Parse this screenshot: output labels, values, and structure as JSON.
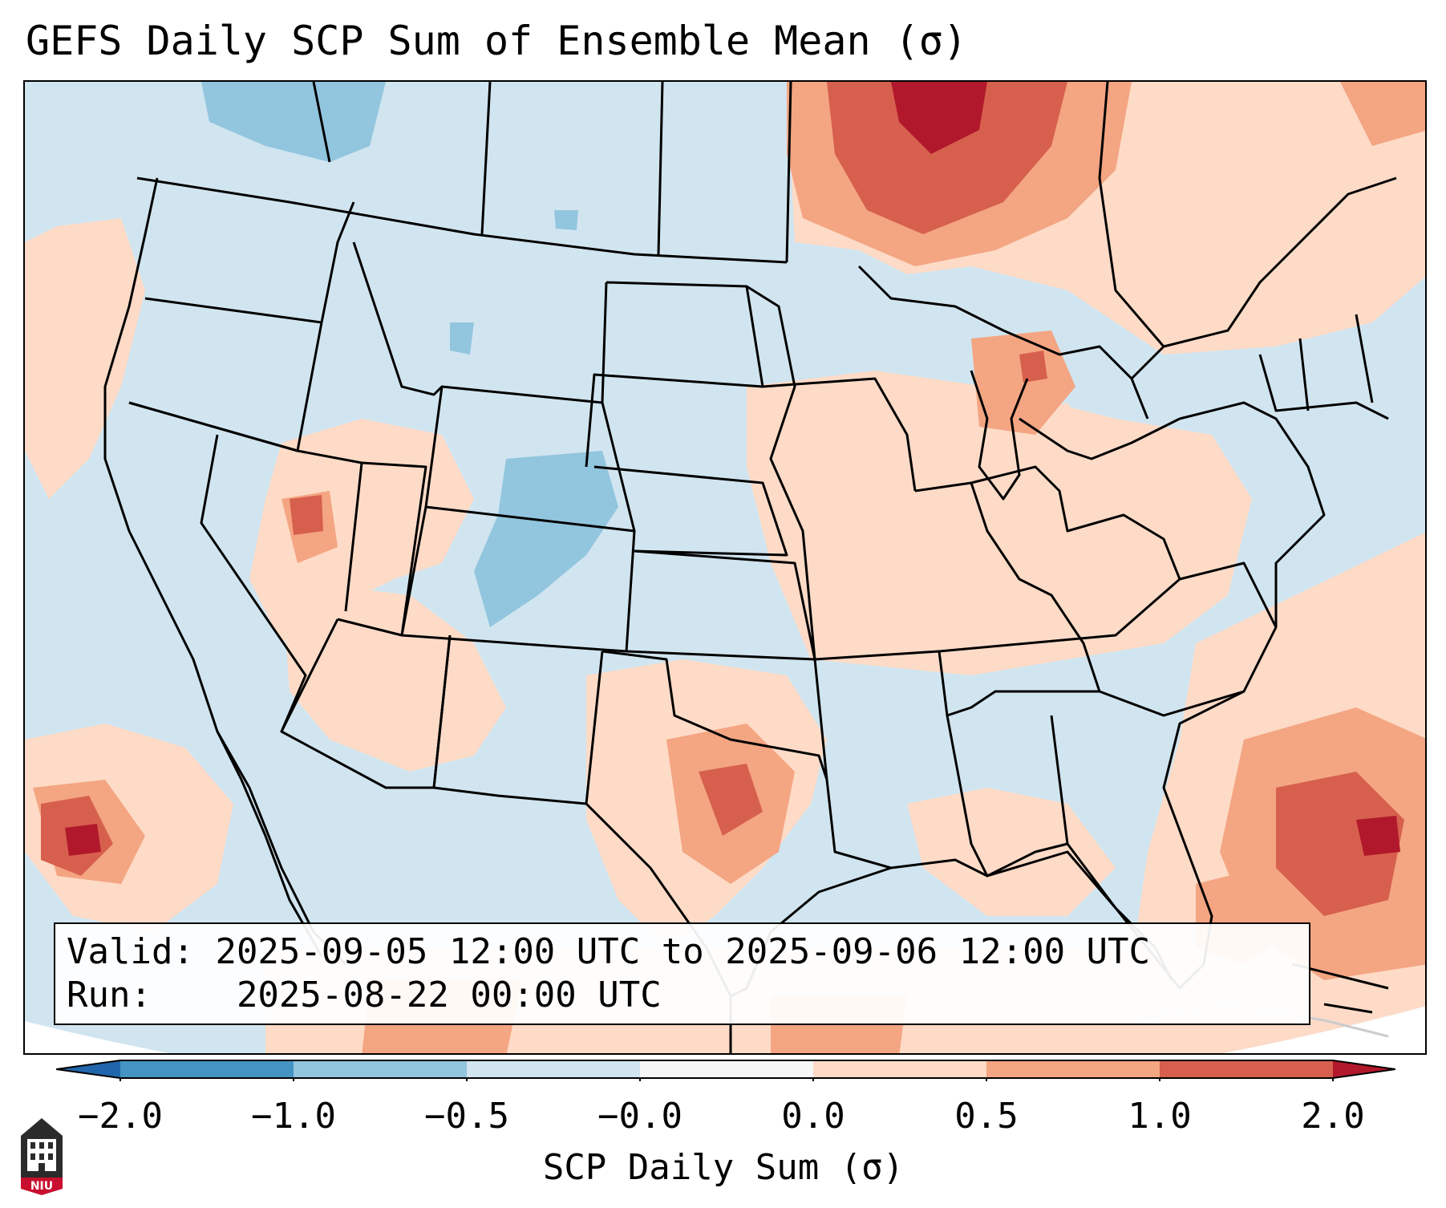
{
  "title": "GEFS Daily SCP Sum of Ensemble Mean (σ)",
  "info_box": {
    "valid_label": "Valid:",
    "valid_value": "2025-09-05 12:00 UTC to 2025-09-06 12:00 UTC",
    "run_label": "Run:",
    "run_value": "2025-08-22 00:00 UTC"
  },
  "colorbar": {
    "label": "SCP Daily Sum (σ)",
    "ticks": [
      "−2.0",
      "−1.0",
      "−0.5",
      "−0.0",
      "0.0",
      "0.5",
      "1.0",
      "2.0"
    ],
    "bins": [
      {
        "from": "-2.0",
        "to": "-1.0",
        "color": "#4393c3"
      },
      {
        "from": "-1.0",
        "to": "-0.5",
        "color": "#92c5de"
      },
      {
        "from": "-0.5",
        "to": "-0.0",
        "color": "#d1e5f0"
      },
      {
        "from": "-0.0",
        "to": "0.0",
        "color": "#f7f7f7"
      },
      {
        "from": "0.0",
        "to": "0.5",
        "color": "#fddbc7"
      },
      {
        "from": "0.5",
        "to": "1.0",
        "color": "#f4a582"
      },
      {
        "from": "1.0",
        "to": "2.0",
        "color": "#d6604d"
      }
    ],
    "under_color": "#2166ac",
    "over_color": "#b2182b"
  },
  "logo": {
    "text": "NIU",
    "icon": "niu-logo-icon"
  }
}
